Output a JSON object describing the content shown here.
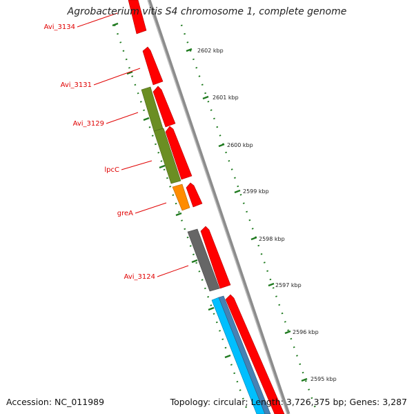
{
  "title": "Agrobacterium vitis S4 chromosome 1, complete genome",
  "footer": {
    "accession": "Accession: NC_011989",
    "summary": "Topology: circular; Length: 3,726,375 bp; Genes: 3,287"
  },
  "ticks": [
    "2602 kbp",
    "2601 kbp",
    "2600 kbp",
    "2599 kbp",
    "2598 kbp",
    "2597 kbp",
    "2596 kbp",
    "2595 kbp"
  ],
  "gene_labels": [
    "Avi_3134",
    "Avi_3131",
    "Avi_3129",
    "lpcC",
    "greA",
    "Avi_3124"
  ],
  "colors": {
    "gene_red": "#ff0000",
    "gene_olive": "#6b8e23",
    "gene_orange": "#ff8c00",
    "gene_gray": "#666666",
    "gene_cyan": "#00bfff",
    "gene_steel": "#4682b4",
    "backbone": "#8c8c8c",
    "tick_green": "#1f7a1f",
    "label_red": "#e00000"
  }
}
